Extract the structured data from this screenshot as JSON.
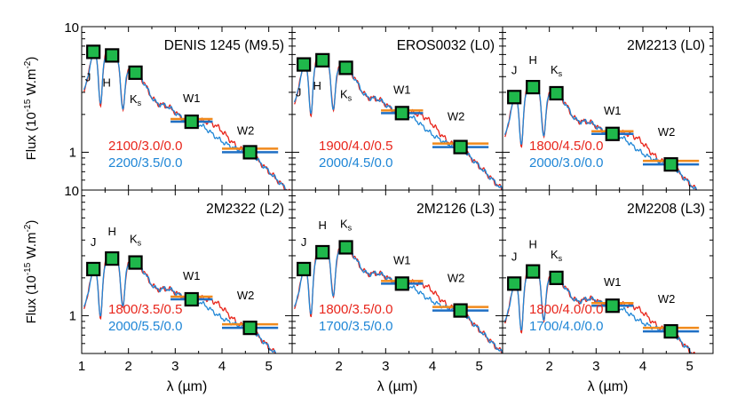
{
  "chart_data": {
    "type": "line",
    "layout": "2x3 grid",
    "xlabel": "λ (µm)",
    "ylabel": "Flux (10",
    "ylabel_exp": "-15",
    "ylabel_unit": " W.m",
    "ylabel_unit_exp": "-2",
    "ylabel_close": ")",
    "xlim": [
      1,
      5.5
    ],
    "ylim": [
      0.5,
      10
    ],
    "yscale": "log",
    "x_ticks": [
      1,
      2,
      3,
      4,
      5
    ],
    "y_ticks": [
      1,
      10
    ],
    "colors": {
      "model_red": "#e8251b",
      "model_blue": "#1f86d6",
      "bar_orange": "#f08a1c",
      "bar_blue": "#1f6fc4",
      "marker": "#1fb84b"
    },
    "band_labels": {
      "J": "J",
      "H": "H",
      "K": "K",
      "K_sub": "s",
      "W1": "W1",
      "W2": "W2"
    },
    "panels": [
      {
        "title": "DENIS 1245 (M9.5)",
        "red_label": "2100/3.0/0.0",
        "blue_label": "2200/3.5/0.0",
        "phot": [
          {
            "x": 1.25,
            "y": 6.3
          },
          {
            "x": 1.65,
            "y": 5.9
          },
          {
            "x": 2.15,
            "y": 4.3
          },
          {
            "x": 3.35,
            "y": 1.75
          },
          {
            "x": 4.6,
            "y": 1.0
          }
        ]
      },
      {
        "title": "EROS0032 (L0)",
        "red_label": "1900/4.0/0.5",
        "blue_label": "2000/4.5/0.0",
        "phot": [
          {
            "x": 1.25,
            "y": 5.0
          },
          {
            "x": 1.65,
            "y": 5.4
          },
          {
            "x": 2.15,
            "y": 4.7
          },
          {
            "x": 3.35,
            "y": 2.05
          },
          {
            "x": 4.6,
            "y": 1.1
          }
        ]
      },
      {
        "title": "2M2213 (L0)",
        "red_label": "1800/4.5/0.0",
        "blue_label": "2000/3.0/0.0",
        "phot": [
          {
            "x": 1.25,
            "y": 2.75
          },
          {
            "x": 1.65,
            "y": 3.3
          },
          {
            "x": 2.15,
            "y": 2.95
          },
          {
            "x": 3.35,
            "y": 1.4
          },
          {
            "x": 4.6,
            "y": 0.8
          }
        ]
      },
      {
        "title": "2M2322 (L2)",
        "red_label": "1800/3.5/0.5",
        "blue_label": "2000/5.5/0.0",
        "phot": [
          {
            "x": 1.25,
            "y": 2.35
          },
          {
            "x": 1.65,
            "y": 2.85
          },
          {
            "x": 2.15,
            "y": 2.65
          },
          {
            "x": 3.35,
            "y": 1.35
          },
          {
            "x": 4.6,
            "y": 0.8
          }
        ]
      },
      {
        "title": "2M2126 (L3)",
        "red_label": "1800/3.5/0.0",
        "blue_label": "1700/3.5/0.0",
        "phot": [
          {
            "x": 1.25,
            "y": 2.35
          },
          {
            "x": 1.65,
            "y": 3.2
          },
          {
            "x": 2.15,
            "y": 3.5
          },
          {
            "x": 3.35,
            "y": 1.8
          },
          {
            "x": 4.6,
            "y": 1.1
          }
        ]
      },
      {
        "title": "2M2208 (L3)",
        "red_label": "1800/4.0/0.0",
        "blue_label": "1700/4.0/0.0",
        "phot": [
          {
            "x": 1.25,
            "y": 1.8
          },
          {
            "x": 1.65,
            "y": 2.25
          },
          {
            "x": 2.15,
            "y": 2.0
          },
          {
            "x": 3.35,
            "y": 1.2
          },
          {
            "x": 4.6,
            "y": 0.75
          }
        ]
      }
    ]
  }
}
